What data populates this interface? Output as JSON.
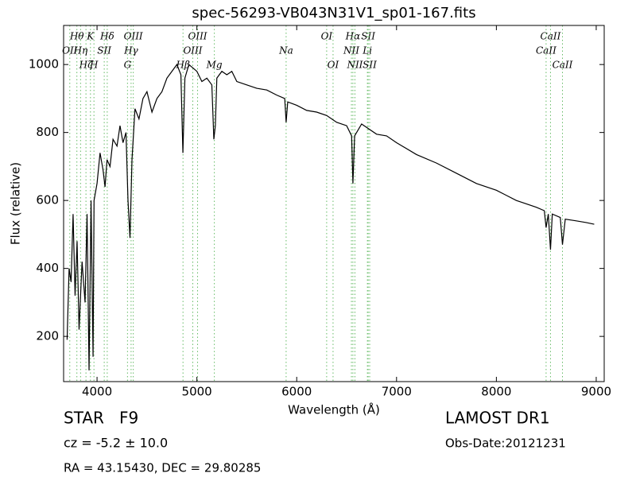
{
  "chart_data": {
    "type": "line",
    "title": "spec-56293-VB043N31V1_sp01-167.fits",
    "x_label": "Wavelength (Å)",
    "y_label": "Flux (relative)",
    "xlim": [
      3665,
      9080
    ],
    "ylim": [
      67,
      1115
    ],
    "xticks": [
      4000,
      5000,
      6000,
      7000,
      8000,
      9000
    ],
    "yticks": [
      200,
      400,
      600,
      800,
      1000
    ],
    "color": "#000000",
    "line_color": "#66bb66",
    "x": [
      3700,
      3720,
      3740,
      3760,
      3780,
      3800,
      3820,
      3850,
      3880,
      3900,
      3920,
      3940,
      3960,
      3970,
      4000,
      4030,
      4060,
      4080,
      4100,
      4130,
      4160,
      4200,
      4230,
      4260,
      4290,
      4310,
      4330,
      4350,
      4380,
      4420,
      4460,
      4500,
      4550,
      4600,
      4650,
      4700,
      4750,
      4800,
      4840,
      4860,
      4880,
      4920,
      4960,
      5000,
      5050,
      5100,
      5150,
      5170,
      5185,
      5200,
      5250,
      5300,
      5350,
      5400,
      5500,
      5600,
      5700,
      5800,
      5880,
      5894,
      5910,
      6000,
      6100,
      6200,
      6300,
      6400,
      6500,
      6550,
      6563,
      6580,
      6650,
      6700,
      6800,
      6900,
      7000,
      7200,
      7400,
      7600,
      7800,
      8000,
      8200,
      8400,
      8480,
      8498,
      8520,
      8542,
      8560,
      8640,
      8662,
      8690,
      8800,
      8900,
      8980
    ],
    "values": [
      190,
      400,
      360,
      560,
      320,
      480,
      220,
      420,
      300,
      560,
      100,
      600,
      140,
      600,
      650,
      740,
      690,
      640,
      720,
      700,
      780,
      760,
      820,
      770,
      800,
      600,
      490,
      720,
      870,
      840,
      900,
      920,
      860,
      900,
      920,
      960,
      980,
      1000,
      970,
      740,
      960,
      1000,
      990,
      980,
      950,
      960,
      940,
      780,
      820,
      960,
      980,
      970,
      980,
      950,
      940,
      930,
      925,
      910,
      900,
      830,
      890,
      880,
      865,
      860,
      850,
      830,
      820,
      790,
      650,
      790,
      825,
      815,
      795,
      790,
      770,
      735,
      710,
      680,
      650,
      630,
      600,
      580,
      570,
      520,
      560,
      455,
      560,
      550,
      470,
      545,
      540,
      535,
      530
    ],
    "lines": [
      {
        "label": "Hθ",
        "x": 3798
      },
      {
        "label": "OII",
        "x": 3727
      },
      {
        "label": "Hζ",
        "x": 3889
      },
      {
        "label": "K",
        "x": 3934
      },
      {
        "label": "Hη",
        "x": 3835
      },
      {
        "label": "H",
        "x": 3969
      },
      {
        "label": "Hδ",
        "x": 4102
      },
      {
        "label": "SII",
        "x": 4072
      },
      {
        "label": "G",
        "x": 4305
      },
      {
        "label": "OIII",
        "x": 4363
      },
      {
        "label": "Hγ",
        "x": 4341
      },
      {
        "label": "Hβ",
        "x": 4861
      },
      {
        "label": "OIII",
        "x": 5007
      },
      {
        "label": "OIII",
        "x": 4959
      },
      {
        "label": "Mg",
        "x": 5175
      },
      {
        "label": "OI",
        "x": 6300
      },
      {
        "label": "Na",
        "x": 5894
      },
      {
        "label": "OI",
        "x": 6364
      },
      {
        "label": "Hα",
        "x": 6563
      },
      {
        "label": "NII",
        "x": 6548
      },
      {
        "label": "NII",
        "x": 6583
      },
      {
        "label": "SII",
        "x": 6716
      },
      {
        "label": "Li",
        "x": 6708
      },
      {
        "label": "SII",
        "x": 6731
      },
      {
        "label": "CaII",
        "x": 8542
      },
      {
        "label": "CaII",
        "x": 8498
      },
      {
        "label": "CaII",
        "x": 8662
      }
    ],
    "notes": [
      "STAR   F9",
      "cz = -5.2 ± 10.0",
      "RA = 43.15430, DEC = 29.80285",
      "LAMOST DR1",
      "Obs-Date:20121231"
    ]
  }
}
